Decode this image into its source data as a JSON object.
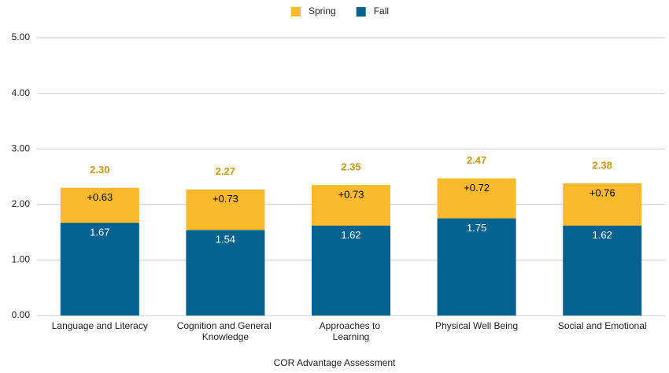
{
  "chart_data": {
    "type": "stacked_bar",
    "x_label": "COR Advantage Assessment",
    "categories": [
      "Language and Literacy",
      "Cognition and General Knowledge",
      "Approaches to Learning",
      "Physical Well Being",
      "Social and Emotional"
    ],
    "series": [
      {
        "name": "Fall",
        "color": "#03628f",
        "values": [
          1.67,
          1.54,
          1.62,
          1.75,
          1.62
        ]
      },
      {
        "name": "Spring",
        "color": "#fbb92c",
        "values": [
          0.63,
          0.73,
          0.73,
          0.72,
          0.76
        ],
        "value_labels": [
          "+0.63",
          "+0.73",
          "+0.73",
          "+0.72",
          "+0.76"
        ]
      }
    ],
    "total_labels": [
      "2.30",
      "2.27",
      "2.35",
      "2.47",
      "2.38"
    ],
    "ylim": [
      0,
      5
    ],
    "yticks": [
      {
        "value": 0,
        "label": "0.00"
      },
      {
        "value": 1,
        "label": "1.00"
      },
      {
        "value": 2,
        "label": "2.00"
      },
      {
        "value": 3,
        "label": "3.00"
      },
      {
        "value": 4,
        "label": "4.00"
      },
      {
        "value": 5,
        "label": "5.00"
      }
    ],
    "grid": true,
    "legend": "top"
  }
}
